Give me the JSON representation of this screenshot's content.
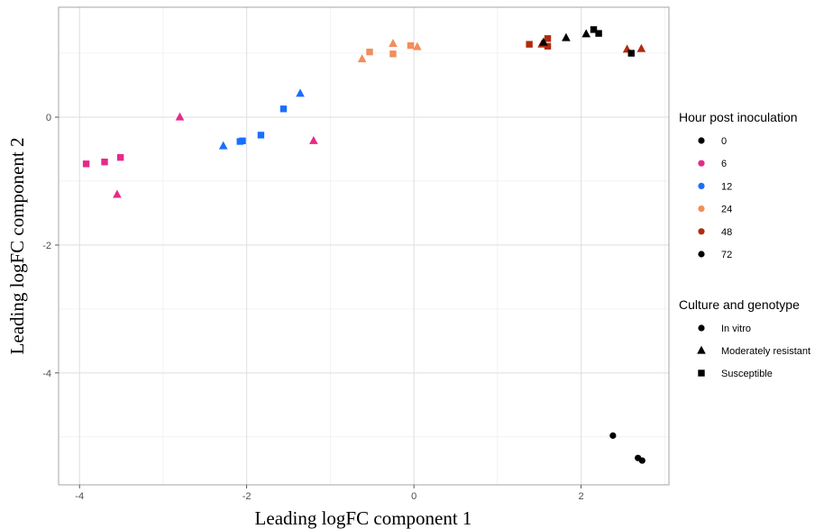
{
  "chart_data": {
    "type": "scatter",
    "xlabel": "Leading logFC component 1",
    "ylabel": "Leading logFC component 2",
    "xlim": [
      -4.25,
      3.05
    ],
    "ylim": [
      -5.75,
      1.72
    ],
    "x_ticks": [
      -4,
      -2,
      0,
      2
    ],
    "y_ticks": [
      0,
      -2,
      -4
    ],
    "grid": true,
    "legend_position": "right",
    "legends": [
      {
        "title": "Hour post inoculation",
        "entries": [
          {
            "label": "0",
            "color": "#000000"
          },
          {
            "label": "6",
            "color": "#E7298A"
          },
          {
            "label": "12",
            "color": "#1A6EFF"
          },
          {
            "label": "24",
            "color": "#F28E5A"
          },
          {
            "label": "48",
            "color": "#B22A10"
          },
          {
            "label": "72",
            "color": "#000000"
          }
        ]
      },
      {
        "title": "Culture and genotype",
        "entries": [
          {
            "label": "In vitro",
            "shape": "circle"
          },
          {
            "label": "Moderately resistant",
            "shape": "triangle"
          },
          {
            "label": "Susceptible",
            "shape": "square"
          }
        ]
      }
    ],
    "points": [
      {
        "x": 2.38,
        "y": -4.98,
        "hour": "0",
        "group": "In vitro"
      },
      {
        "x": 2.68,
        "y": -5.33,
        "hour": "0",
        "group": "In vitro"
      },
      {
        "x": 2.73,
        "y": -5.37,
        "hour": "0",
        "group": "In vitro"
      },
      {
        "x": -3.92,
        "y": -0.73,
        "hour": "6",
        "group": "Susceptible"
      },
      {
        "x": -3.7,
        "y": -0.7,
        "hour": "6",
        "group": "Susceptible"
      },
      {
        "x": -3.51,
        "y": -0.63,
        "hour": "6",
        "group": "Susceptible"
      },
      {
        "x": -3.55,
        "y": -1.21,
        "hour": "6",
        "group": "Moderately resistant"
      },
      {
        "x": -2.8,
        "y": 0.0,
        "hour": "6",
        "group": "Moderately resistant"
      },
      {
        "x": -1.2,
        "y": -0.37,
        "hour": "6",
        "group": "Moderately resistant"
      },
      {
        "x": -2.28,
        "y": -0.45,
        "hour": "12",
        "group": "Moderately resistant"
      },
      {
        "x": -2.08,
        "y": -0.38,
        "hour": "12",
        "group": "Susceptible"
      },
      {
        "x": -2.05,
        "y": -0.37,
        "hour": "12",
        "group": "Susceptible"
      },
      {
        "x": -1.83,
        "y": -0.28,
        "hour": "12",
        "group": "Susceptible"
      },
      {
        "x": -1.56,
        "y": 0.13,
        "hour": "12",
        "group": "Susceptible"
      },
      {
        "x": -1.36,
        "y": 0.37,
        "hour": "12",
        "group": "Moderately resistant"
      },
      {
        "x": -0.62,
        "y": 0.91,
        "hour": "24",
        "group": "Moderately resistant"
      },
      {
        "x": -0.53,
        "y": 1.02,
        "hour": "24",
        "group": "Susceptible"
      },
      {
        "x": -0.25,
        "y": 1.15,
        "hour": "24",
        "group": "Moderately resistant"
      },
      {
        "x": -0.25,
        "y": 0.99,
        "hour": "24",
        "group": "Susceptible"
      },
      {
        "x": -0.04,
        "y": 1.12,
        "hour": "24",
        "group": "Susceptible"
      },
      {
        "x": 0.04,
        "y": 1.1,
        "hour": "24",
        "group": "Moderately resistant"
      },
      {
        "x": 1.38,
        "y": 1.14,
        "hour": "48",
        "group": "Susceptible"
      },
      {
        "x": 1.53,
        "y": 1.14,
        "hour": "48",
        "group": "Moderately resistant"
      },
      {
        "x": 1.6,
        "y": 1.23,
        "hour": "48",
        "group": "Susceptible"
      },
      {
        "x": 1.6,
        "y": 1.11,
        "hour": "48",
        "group": "Susceptible"
      },
      {
        "x": 2.55,
        "y": 1.06,
        "hour": "48",
        "group": "Moderately resistant"
      },
      {
        "x": 2.72,
        "y": 1.07,
        "hour": "48",
        "group": "Moderately resistant"
      },
      {
        "x": 1.55,
        "y": 1.17,
        "hour": "72",
        "group": "Moderately resistant"
      },
      {
        "x": 1.82,
        "y": 1.24,
        "hour": "72",
        "group": "Moderately resistant"
      },
      {
        "x": 2.06,
        "y": 1.3,
        "hour": "72",
        "group": "Moderately resistant"
      },
      {
        "x": 2.15,
        "y": 1.37,
        "hour": "72",
        "group": "Susceptible"
      },
      {
        "x": 2.21,
        "y": 1.31,
        "hour": "72",
        "group": "Susceptible"
      },
      {
        "x": 2.6,
        "y": 1.0,
        "hour": "72",
        "group": "Susceptible"
      }
    ]
  }
}
